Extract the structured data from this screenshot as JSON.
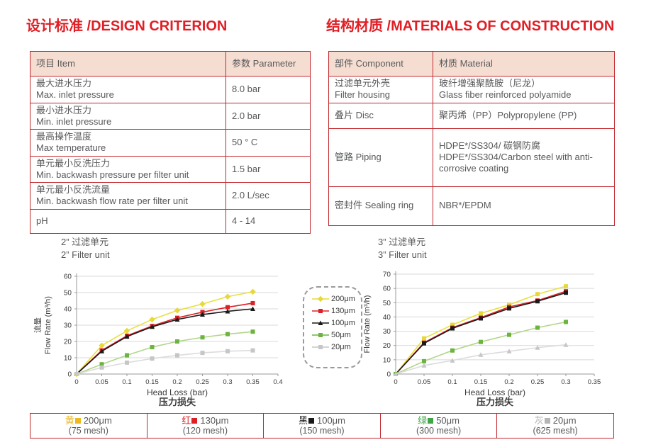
{
  "headings": {
    "design": "设计标准 /DESIGN CRITERION",
    "materials": "结构材质 /MATERIALS OF CONSTRUCTION"
  },
  "design_table": {
    "col1": "项目 Item",
    "col2": "参数 Parameter",
    "rows": [
      {
        "zh": "最大进水压力",
        "en": "Max. inlet pressure",
        "value": "8.0 bar"
      },
      {
        "zh": "最小进水压力",
        "en": "Min. inlet pressure",
        "value": "2.0 bar"
      },
      {
        "zh": "最高操作温度",
        "en": "Max temperature",
        "value": "50 ° C"
      },
      {
        "zh": "单元最小反洗压力",
        "en": "Min. backwash pressure per filter unit",
        "value": "1.5 bar"
      },
      {
        "zh": "单元最小反洗流量",
        "en": "Min. backwash flow rate per filter unit",
        "value": "2.0 L/sec"
      },
      {
        "zh": "pH",
        "en": "",
        "value": "4 - 14"
      }
    ]
  },
  "materials_table": {
    "col1": "部件 Component",
    "col2": "材质 Material",
    "rows": [
      {
        "component": [
          "过滤单元外壳",
          "Filter housing"
        ],
        "material": [
          "玻纤增强聚酰胺（尼龙）",
          "Glass fiber reinforced polyamide"
        ]
      },
      {
        "component": [
          "叠片 Disc"
        ],
        "material": [
          "聚丙烯（PP）Polypropylene (PP)"
        ]
      },
      {
        "component": [
          "管路 Piping"
        ],
        "material": [
          "HDPE*/SS304/ 碳钢防腐",
          "HDPE*/SS304/Carbon steel with anti-corrosive coating"
        ]
      },
      {
        "component": [
          "密封件 Sealing ring"
        ],
        "material": [
          "NBR*/EPDM"
        ]
      }
    ]
  },
  "chart_data": [
    {
      "type": "line",
      "title_zh": "2”  过滤单元",
      "title_en": "2”  Filter unit",
      "xlabel": "Head Loss (bar)",
      "xlabel_zh": "压力损失",
      "ylabel_zh": "流量",
      "ylabel_en": "Flow Rate (m³/h)",
      "xlim": [
        0,
        0.4
      ],
      "ylim": [
        0,
        60
      ],
      "xticks": [
        0,
        0.05,
        0.1,
        0.15,
        0.2,
        0.25,
        0.3,
        0.35,
        0.4
      ],
      "yticks": [
        0,
        10,
        20,
        30,
        40,
        50,
        60
      ],
      "grid": true,
      "x": [
        0,
        0.05,
        0.1,
        0.15,
        0.2,
        0.25,
        0.3,
        0.35
      ],
      "series": [
        {
          "name": "200μm",
          "marker": "diamond",
          "line_color": "#e7e13e",
          "marker_color": "#e7d93a",
          "values": [
            0,
            17.5,
            26.5,
            33.5,
            39,
            43,
            47.5,
            50.5
          ]
        },
        {
          "name": "130μm",
          "marker": "square",
          "line_color": "#dd2026",
          "marker_color": "#dd2026",
          "values": [
            0,
            14.5,
            23.5,
            29.5,
            34.5,
            38,
            41,
            43.5
          ]
        },
        {
          "name": "100μm",
          "marker": "triangle",
          "line_color": "#1a1a1a",
          "marker_color": "#1a1a1a",
          "values": [
            0,
            14,
            23,
            29,
            33.5,
            36.5,
            38.5,
            40
          ]
        },
        {
          "name": "50μm",
          "marker": "square",
          "line_color": "#b2d68a",
          "marker_color": "#6db33f",
          "values": [
            0,
            6,
            11.5,
            16.5,
            20,
            22.5,
            24.5,
            26
          ]
        },
        {
          "name": "20μm",
          "marker": "square",
          "line_color": "#dcdcdc",
          "marker_color": "#c6c6c6",
          "values": [
            0,
            4,
            7,
            9.5,
            11.5,
            13,
            14,
            14.5
          ]
        }
      ]
    },
    {
      "type": "line",
      "title_zh": "3”  过滤单元",
      "title_en": "3”  Filter unit",
      "xlabel": "Head Loss (bar)",
      "xlabel_zh": "压力损失",
      "ylabel_zh": "流量",
      "ylabel_en": "Flow Rate (m³/h)",
      "xlim": [
        0,
        0.35
      ],
      "ylim": [
        0,
        70
      ],
      "xticks": [
        0,
        0.05,
        0.1,
        0.15,
        0.2,
        0.25,
        0.3,
        0.35
      ],
      "yticks": [
        0,
        10,
        20,
        30,
        40,
        50,
        60,
        70
      ],
      "grid": true,
      "x": [
        0,
        0.05,
        0.1,
        0.15,
        0.2,
        0.25,
        0.3
      ],
      "series": [
        {
          "name": "200μm",
          "marker": "square",
          "line_color": "#e7e13e",
          "marker_color": "#e7d93a",
          "values": [
            0,
            25,
            34.5,
            42.5,
            48.5,
            56,
            61.5
          ]
        },
        {
          "name": "130μm",
          "marker": "square",
          "line_color": "#dd2026",
          "marker_color": "#dd2026",
          "values": [
            0,
            22,
            32.5,
            39.5,
            47,
            51.5,
            58
          ]
        },
        {
          "name": "100μm",
          "marker": "square",
          "line_color": "#1a1a1a",
          "marker_color": "#1a1a1a",
          "values": [
            0,
            21.5,
            32,
            39,
            46,
            51,
            57
          ]
        },
        {
          "name": "50μm",
          "marker": "square",
          "line_color": "#b2d68a",
          "marker_color": "#6db33f",
          "values": [
            0,
            9,
            16.5,
            22.5,
            27.5,
            32.5,
            36.5
          ]
        },
        {
          "name": "20μm",
          "marker": "triangle",
          "line_color": "#dcdcdc",
          "marker_color": "#c6c6c6",
          "values": [
            0,
            6,
            9.5,
            13.5,
            16,
            18.5,
            20.5
          ]
        }
      ]
    }
  ],
  "side_legend": {
    "items": [
      {
        "label": "200μm",
        "marker": "diamond",
        "color": "#e7d93a"
      },
      {
        "label": "130μm",
        "marker": "square",
        "color": "#dd2026"
      },
      {
        "label": "100μm",
        "marker": "triangle",
        "color": "#1a1a1a"
      },
      {
        "label": "50μm",
        "marker": "square",
        "color": "#6db33f"
      },
      {
        "label": "20μm",
        "marker": "square",
        "color": "#c6c6c6"
      }
    ]
  },
  "bottom_legend": {
    "cells": [
      {
        "cn": "黄",
        "color": "#edb822",
        "size": "200μm",
        "mesh": "(75 mesh)"
      },
      {
        "cn": "红",
        "color": "#dd2026",
        "size": "130μm",
        "mesh": "(120 mesh)"
      },
      {
        "cn": "黑",
        "color": "#1a1a1a",
        "size": "100μm",
        "mesh": "(150 mesh)"
      },
      {
        "cn": "绿",
        "color": "#3fa547",
        "size": "50μm",
        "mesh": "(300 mesh)"
      },
      {
        "cn": "灰",
        "color": "#b5b5b5",
        "size": "20μm",
        "mesh": "(625 mesh)"
      }
    ]
  }
}
